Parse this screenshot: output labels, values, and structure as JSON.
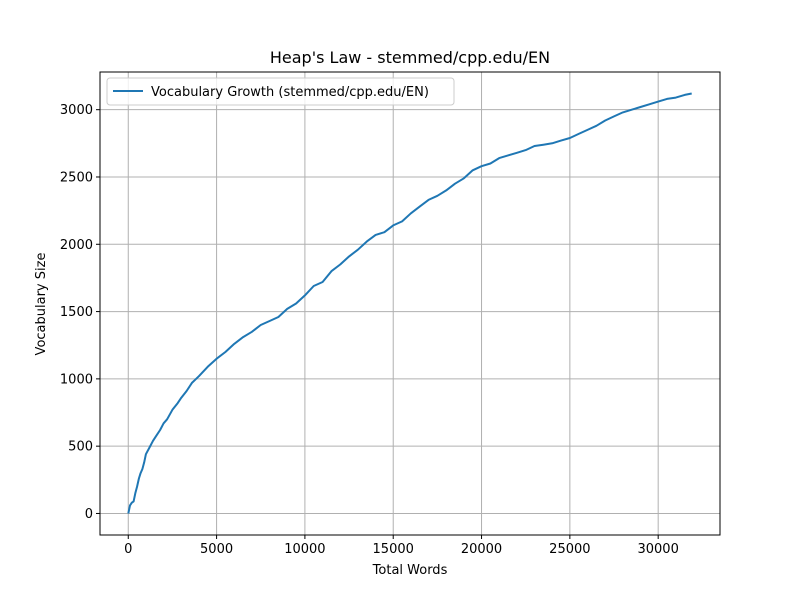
{
  "chart_data": {
    "type": "line",
    "title": "Heap's Law - stemmed/cpp.edu/EN",
    "xlabel": "Total Words",
    "ylabel": "Vocabulary Size",
    "xlim": [
      -1600,
      33500
    ],
    "ylim": [
      -160,
      3280
    ],
    "xticks": [
      0,
      5000,
      10000,
      15000,
      20000,
      25000,
      30000
    ],
    "yticks": [
      0,
      500,
      1000,
      1500,
      2000,
      2500,
      3000
    ],
    "grid": true,
    "legend_position": "top-left",
    "series": [
      {
        "name": "Vocabulary Growth (stemmed/cpp.edu/EN)",
        "color": "#1f77b4",
        "x": [
          0,
          100,
          200,
          300,
          400,
          500,
          600,
          700,
          800,
          900,
          1000,
          1200,
          1400,
          1600,
          1800,
          2000,
          2200,
          2500,
          2800,
          3000,
          3300,
          3600,
          4000,
          4500,
          5000,
          5500,
          6000,
          6500,
          7000,
          7500,
          8000,
          8500,
          9000,
          9500,
          10000,
          10500,
          11000,
          11500,
          12000,
          12500,
          13000,
          13500,
          14000,
          14500,
          15000,
          15500,
          16000,
          16500,
          17000,
          17500,
          18000,
          18500,
          19000,
          19500,
          20000,
          20500,
          21000,
          21500,
          22000,
          22500,
          23000,
          23500,
          24000,
          24500,
          25000,
          25500,
          26000,
          26500,
          27000,
          27500,
          28000,
          28500,
          29000,
          29500,
          30000,
          30500,
          31000,
          31500,
          31900
        ],
        "values": [
          0,
          60,
          80,
          90,
          150,
          200,
          260,
          300,
          330,
          380,
          440,
          490,
          540,
          580,
          620,
          670,
          700,
          770,
          820,
          860,
          910,
          970,
          1020,
          1090,
          1150,
          1200,
          1260,
          1310,
          1350,
          1400,
          1430,
          1460,
          1520,
          1560,
          1620,
          1690,
          1720,
          1800,
          1850,
          1910,
          1960,
          2020,
          2070,
          2090,
          2140,
          2170,
          2230,
          2280,
          2330,
          2360,
          2400,
          2450,
          2490,
          2550,
          2580,
          2600,
          2640,
          2660,
          2680,
          2700,
          2730,
          2740,
          2750,
          2770,
          2790,
          2820,
          2850,
          2880,
          2920,
          2950,
          2980,
          3000,
          3020,
          3040,
          3060,
          3080,
          3090,
          3110,
          3120
        ]
      }
    ]
  }
}
